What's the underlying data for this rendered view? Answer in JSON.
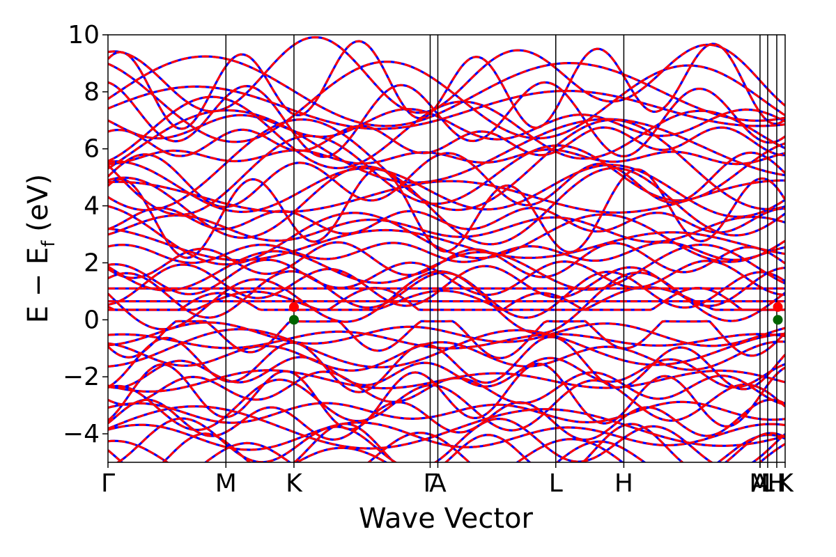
{
  "chart_data": {
    "type": "line",
    "title": "",
    "xlabel": "Wave Vector",
    "ylabel": {
      "main": "E − E",
      "sub": "f",
      "unit": " (eV)"
    },
    "ylim": [
      -5,
      10
    ],
    "yticks": [
      -4,
      -2,
      0,
      2,
      4,
      6,
      8,
      10
    ],
    "ytick_labels": [
      "−4",
      "−2",
      "0",
      "2",
      "4",
      "6",
      "8",
      "10"
    ],
    "kpath_positions": [
      0.0,
      1.0,
      1.577,
      2.732,
      2.797,
      3.797,
      4.374,
      5.529,
      5.594,
      5.671,
      5.742
    ],
    "kpoint_labels": [
      {
        "label": "Γ",
        "pos": 0.0
      },
      {
        "label": "M",
        "pos": 1.0
      },
      {
        "label": "K",
        "pos": 1.577
      },
      {
        "label": "Γ",
        "pos": 2.732
      },
      {
        "label": "A",
        "pos": 2.797
      },
      {
        "label": "L",
        "pos": 3.797
      },
      {
        "label": "H",
        "pos": 4.374
      },
      {
        "label": "A",
        "pos": 5.529
      },
      {
        "label": "L",
        "pos": 5.594
      },
      {
        "label": "M",
        "pos": 5.529
      },
      {
        "label": "H",
        "pos": 5.671
      },
      {
        "label": "K",
        "pos": 5.742
      }
    ],
    "series": [
      {
        "name": "",
        "color": "#0000ff",
        "style": "solid"
      },
      {
        "name": "",
        "color": "#ff0000",
        "style": "dashed"
      }
    ],
    "flat_bands": [
      0.65,
      1.1
    ],
    "markers": [
      {
        "x": 1.577,
        "y": 0.0,
        "color": "#006400"
      },
      {
        "x": 1.577,
        "y": 0.45,
        "color": "#ff0000"
      },
      {
        "x": 5.68,
        "y": 0.0,
        "color": "#006400"
      },
      {
        "x": 5.68,
        "y": 0.45,
        "color": "#ff0000"
      }
    ],
    "grid": false,
    "legend": "none"
  }
}
